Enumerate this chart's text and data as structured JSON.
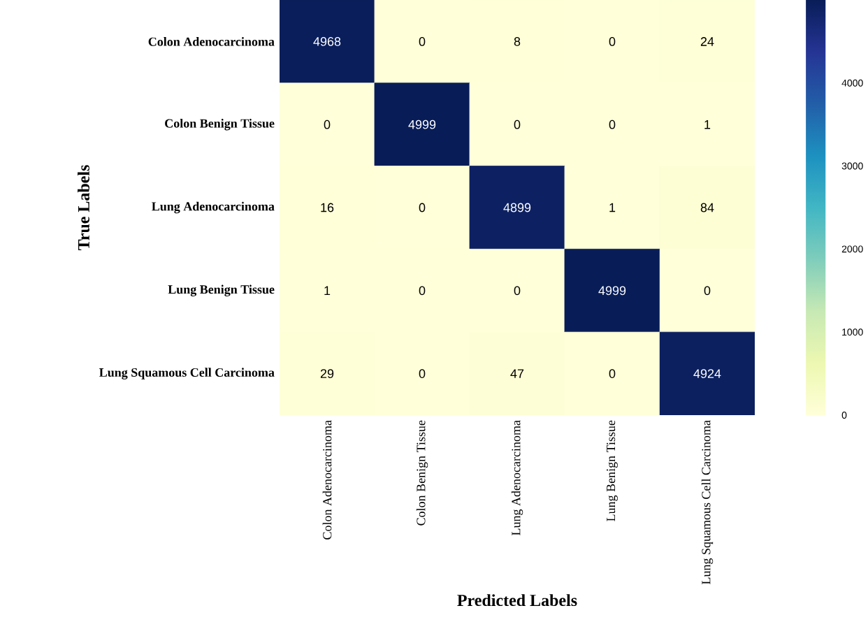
{
  "chart_data": {
    "type": "heatmap",
    "xlabel": "Predicted Labels",
    "ylabel": "True Labels",
    "categories": [
      "Colon Adenocarcinoma",
      "Colon Benign Tissue",
      "Lung Adenocarcinoma",
      "Lung Benign Tissue",
      "Lung Squamous Cell Carcinoma"
    ],
    "y_categories": [
      "Colon Adenocarcinoma",
      "Colon Benign Tissue",
      "Lung Adenocarcinoma",
      "Lung Benign Tissue",
      "Lung Squamous Cell Carcinoma"
    ],
    "cells": [
      [
        4968,
        0,
        8,
        0,
        24
      ],
      [
        0,
        4999,
        0,
        0,
        1
      ],
      [
        16,
        0,
        4899,
        1,
        84
      ],
      [
        1,
        0,
        0,
        4999,
        0
      ],
      [
        29,
        0,
        47,
        0,
        4924
      ]
    ],
    "clim": [
      0,
      4999
    ],
    "cticks": [
      0,
      1000,
      2000,
      3000,
      4000
    ],
    "data_labels": true
  }
}
